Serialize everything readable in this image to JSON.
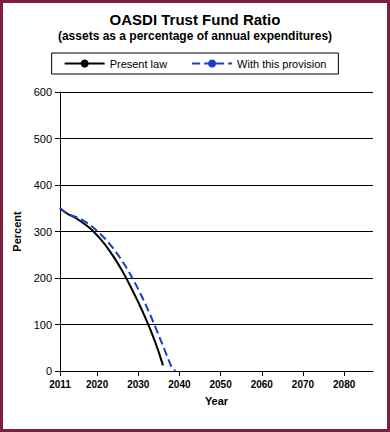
{
  "chart_data": {
    "type": "line",
    "title": "OASDI Trust Fund Ratio",
    "subtitle": "(assets as a percentage of annual expenditures)",
    "x_label": "Year",
    "y_label": "Percent",
    "x": [
      2011,
      2012,
      2013,
      2014,
      2015,
      2016,
      2017,
      2018,
      2019,
      2020,
      2021,
      2022,
      2023,
      2024,
      2025,
      2026,
      2027,
      2028,
      2029,
      2030,
      2031,
      2032,
      2033,
      2034,
      2035,
      2036,
      2037,
      2038,
      2039
    ],
    "series": [
      {
        "name": "Present law",
        "color": "#000000",
        "line_style": "solid",
        "values": [
          350,
          343,
          337,
          333,
          328,
          322,
          316,
          309,
          301,
          292,
          282,
          271,
          259,
          246,
          232,
          217,
          201,
          184,
          166,
          148,
          129,
          109,
          88,
          65,
          40,
          12,
          null,
          null,
          null
        ]
      },
      {
        "name": "With this provision",
        "color": "#1a3cc8",
        "line_style": "dashed",
        "values": [
          350,
          343,
          337,
          334,
          331,
          327,
          322,
          316,
          309,
          301,
          293,
          284,
          274,
          263,
          251,
          238,
          224,
          209,
          193,
          176,
          158,
          139,
          119,
          98,
          76,
          54,
          32,
          10,
          0
        ]
      }
    ],
    "xlim": [
      2011,
      2087
    ],
    "xticks": [
      2011,
      2020,
      2030,
      2040,
      2050,
      2060,
      2070,
      2080
    ],
    "ylim": [
      0,
      600
    ],
    "yticks": [
      0,
      100,
      200,
      300,
      400,
      500,
      600
    ],
    "grid": true,
    "legend": "top"
  }
}
